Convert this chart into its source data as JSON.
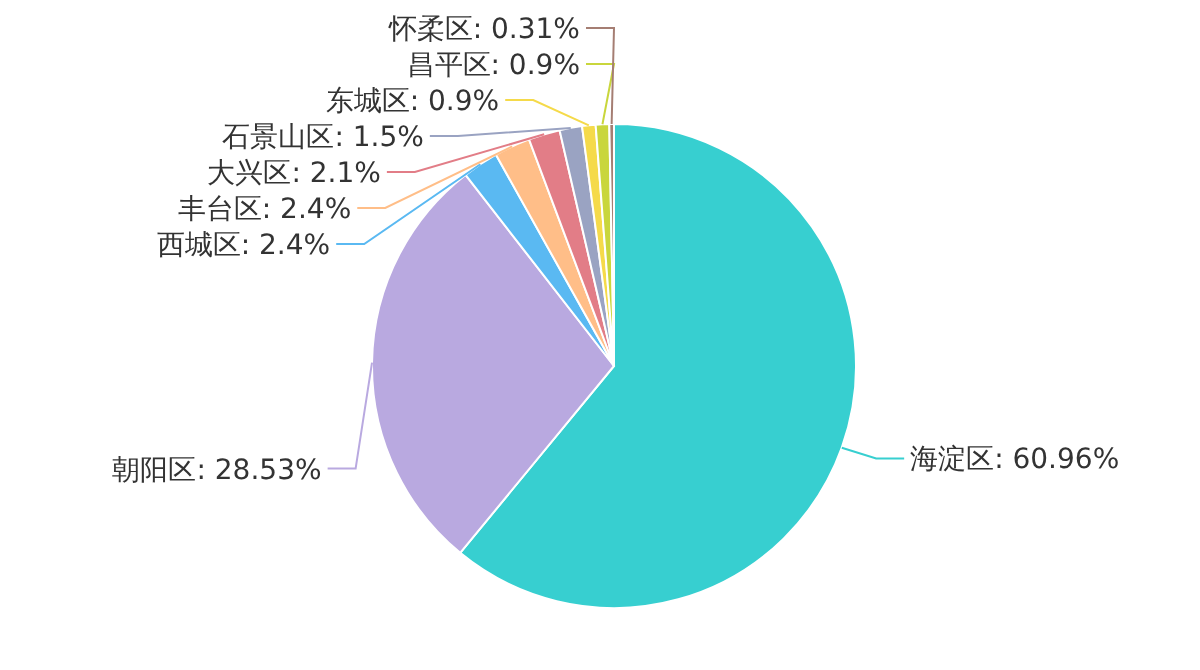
{
  "chart_data": {
    "type": "pie",
    "categories": [
      "海淀区",
      "朝阳区",
      "西城区",
      "丰台区",
      "大兴区",
      "石景山区",
      "东城区",
      "昌平区",
      "怀柔区"
    ],
    "values": [
      60.96,
      28.53,
      2.4,
      2.4,
      2.1,
      1.5,
      0.9,
      0.9,
      0.31
    ],
    "colors": [
      "#37cfd0",
      "#b9a9e0",
      "#5ab9f2",
      "#ffbe88",
      "#e27d87",
      "#9aa3c2",
      "#f5da4a",
      "#c9d63c",
      "#a57e73"
    ],
    "value_labels": [
      ": 60.96%",
      ": 28.53%",
      ": 2.4%",
      ": 2.4%",
      ": 2.1%",
      ": 1.5%",
      ": 0.9%",
      ": 0.9%",
      ": 0.31%"
    ]
  }
}
